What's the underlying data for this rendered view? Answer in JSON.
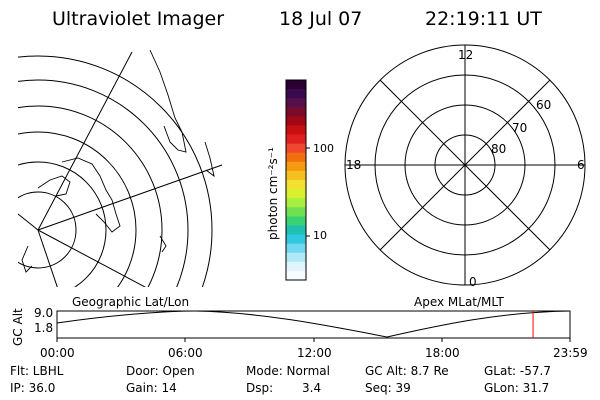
{
  "header": {
    "title": "Ultraviolet Imager",
    "date": "18 Jul 07",
    "time": "22:19:11 UT"
  },
  "colorbar": {
    "label": "photon cm⁻²s⁻¹",
    "tick_100": "100",
    "tick_10": "10",
    "colors": [
      "#2a0033",
      "#3a0a50",
      "#55104a",
      "#7a0a2a",
      "#a00818",
      "#c81010",
      "#e02020",
      "#f04830",
      "#f07010",
      "#f49a10",
      "#f6c020",
      "#f4e030",
      "#d8f030",
      "#a8f040",
      "#70e050",
      "#38d070",
      "#20c0b0",
      "#30c8e0",
      "#70d8f0",
      "#b0e8f8",
      "#e0f4fb",
      "#f6fbfd"
    ]
  },
  "geo_map": {
    "label": "Geographic Lat/Lon"
  },
  "polar": {
    "label": "Apex MLat/MLT",
    "mlt_labels": {
      "top": "12",
      "left": "18",
      "right": "6",
      "bottom": "0"
    },
    "lat_labels": [
      "60",
      "70",
      "80"
    ]
  },
  "orbit": {
    "axis_label": "GC Alt",
    "y_high": "9.0",
    "y_low": "1.8",
    "time_ticks": [
      "00:00",
      "06:00",
      "12:00",
      "18:00",
      "23:59"
    ],
    "current_time_fraction": 0.928,
    "marker_color": "#ff0000"
  },
  "footer": {
    "flt": "Flt: LBHL",
    "door": "Door: Open",
    "mode": "Mode: Normal",
    "gc_alt": "GC Alt: 8.7 Re",
    "glat": "GLat: -57.7",
    "ip": "IP: 36.0",
    "gain": "Gain: 14",
    "dsp_label": "Dsp:",
    "dsp_value": "3.4",
    "seq": "Seq: 39",
    "glon": "GLon: 31.7"
  }
}
